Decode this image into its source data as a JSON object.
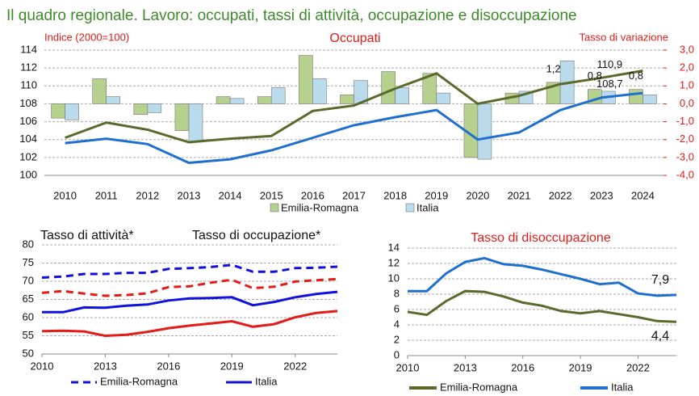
{
  "title": "Il quadro regionale. Lavoro: occupati, tassi di attività, occupazione e disoccupazione",
  "chart_data": [
    {
      "type": "combo",
      "title": "Occupati",
      "ylabel": "Indice (2000=100)",
      "y2label": "Tasso di variazione",
      "categories": [
        "2010",
        "2011",
        "2012",
        "2013",
        "2014",
        "2015",
        "2016",
        "2017",
        "2018",
        "2019",
        "2020",
        "2021",
        "2022",
        "2023",
        "2024"
      ],
      "ylim": [
        100,
        114
      ],
      "yticks": [
        100,
        102,
        104,
        106,
        108,
        110,
        112,
        114
      ],
      "y2lim": [
        -4,
        3
      ],
      "y2ticks": [
        {
          "value": -4,
          "label": "-4,0"
        },
        {
          "value": -3,
          "label": "-3,0"
        },
        {
          "value": -2,
          "label": "-2,0"
        },
        {
          "value": -1,
          "label": "-1,0"
        },
        {
          "value": 0,
          "label": "0,0"
        },
        {
          "value": 1,
          "label": "1,0"
        },
        {
          "value": 2,
          "label": "2,0"
        },
        {
          "value": 3,
          "label": "3,0"
        }
      ],
      "grid": true,
      "series": [
        {
          "name": "Emilia-Romagna",
          "color": "#5a6a2c",
          "bar_color": "#b6d08e",
          "values": [
            104.2,
            105.9,
            105.1,
            103.7,
            104.1,
            104.4,
            107.2,
            107.8,
            109.7,
            111.4,
            108.0,
            108.9,
            110.2,
            110.9,
            111.7
          ],
          "value_labels": [
            null,
            null,
            null,
            null,
            null,
            null,
            null,
            null,
            null,
            null,
            null,
            null,
            null,
            "110,9",
            null
          ],
          "changes": [
            -0.8,
            1.4,
            -0.6,
            -1.5,
            0.4,
            0.4,
            2.7,
            0.5,
            1.8,
            1.7,
            -3.0,
            0.6,
            1.2,
            0.8,
            0.8
          ],
          "change_labels": [
            null,
            null,
            null,
            null,
            null,
            null,
            null,
            null,
            null,
            null,
            null,
            null,
            "1,2",
            "0,8",
            "0,8"
          ]
        },
        {
          "name": "Italia",
          "color": "#1f6fd0",
          "bar_color": "#b9dbec",
          "values": [
            103.6,
            104.1,
            103.5,
            101.4,
            101.8,
            102.8,
            104.2,
            105.6,
            106.5,
            107.3,
            104.0,
            104.8,
            107.3,
            108.7,
            109.2
          ],
          "value_labels": [
            null,
            null,
            null,
            null,
            null,
            null,
            null,
            null,
            null,
            null,
            null,
            null,
            null,
            "108,7",
            null
          ],
          "changes": [
            -0.9,
            0.4,
            -0.5,
            -2.1,
            0.3,
            0.9,
            1.4,
            1.3,
            0.9,
            0.6,
            -3.1,
            0.7,
            2.4,
            0.7,
            0.5
          ]
        }
      ]
    },
    {
      "type": "line",
      "x": [
        2010,
        2011,
        2012,
        2013,
        2014,
        2015,
        2016,
        2017,
        2018,
        2019,
        2020,
        2021,
        2022,
        2023,
        2024
      ],
      "xlim": [
        2010,
        2024
      ],
      "xticks": [
        2010,
        2013,
        2016,
        2019,
        2022
      ],
      "ylim": [
        50,
        80
      ],
      "yticks": [
        50,
        55,
        60,
        65,
        70,
        75,
        80
      ],
      "grid": true,
      "legend": [
        {
          "name": "Emilia-Romagna",
          "dash": "dashed"
        },
        {
          "name": "Italia",
          "dash": "solid"
        }
      ],
      "groups": [
        {
          "name": "Tasso di attività*",
          "color": "#1010e0",
          "series": [
            {
              "values": [
                71.0,
                71.3,
                72.0,
                72.0,
                72.3,
                72.3,
                73.4,
                73.6,
                73.9,
                74.5,
                72.6,
                72.6,
                73.6,
                73.7,
                74.0
              ]
            },
            {
              "values": [
                61.5,
                61.5,
                62.8,
                62.7,
                63.3,
                63.6,
                64.7,
                65.3,
                65.4,
                65.6,
                63.4,
                64.3,
                65.6,
                66.5,
                67.1
              ]
            }
          ]
        },
        {
          "name": "Tasso di occupazione*",
          "color": "#e41b17",
          "series": [
            {
              "values": [
                66.8,
                67.3,
                66.6,
                66.0,
                66.2,
                66.7,
                68.4,
                68.6,
                69.6,
                70.4,
                68.1,
                68.5,
                69.9,
                70.3,
                70.6
              ]
            },
            {
              "values": [
                56.3,
                56.4,
                56.2,
                55.0,
                55.3,
                56.1,
                57.1,
                57.8,
                58.4,
                59.0,
                57.5,
                58.2,
                60.1,
                61.3,
                61.8
              ]
            }
          ]
        }
      ]
    },
    {
      "type": "line",
      "title": "Tasso di disoccupazione",
      "x": [
        2010,
        2011,
        2012,
        2013,
        2014,
        2015,
        2016,
        2017,
        2018,
        2019,
        2020,
        2021,
        2022,
        2023,
        2024
      ],
      "xlim": [
        2010,
        2024
      ],
      "xticks": [
        2010,
        2013,
        2016,
        2019,
        2022
      ],
      "ylim": [
        0,
        14
      ],
      "yticks": [
        0,
        2,
        4,
        6,
        8,
        10,
        12,
        14
      ],
      "grid": true,
      "series": [
        {
          "name": "Emilia-Romagna",
          "color": "#5a6a2c",
          "values": [
            5.7,
            5.3,
            7.1,
            8.4,
            8.3,
            7.7,
            6.9,
            6.5,
            5.8,
            5.5,
            5.8,
            5.4,
            5.0,
            4.5,
            4.4
          ],
          "value_labels": [
            null,
            null,
            null,
            null,
            null,
            null,
            null,
            null,
            null,
            null,
            null,
            null,
            null,
            null,
            "4,4"
          ]
        },
        {
          "name": "Italia",
          "color": "#1f6fd0",
          "values": [
            8.4,
            8.4,
            10.7,
            12.2,
            12.7,
            11.9,
            11.7,
            11.2,
            10.6,
            10.0,
            9.3,
            9.5,
            8.1,
            7.8,
            7.9
          ],
          "value_labels": [
            null,
            null,
            null,
            null,
            null,
            null,
            null,
            null,
            null,
            null,
            null,
            null,
            null,
            null,
            "7,9"
          ]
        }
      ]
    }
  ]
}
